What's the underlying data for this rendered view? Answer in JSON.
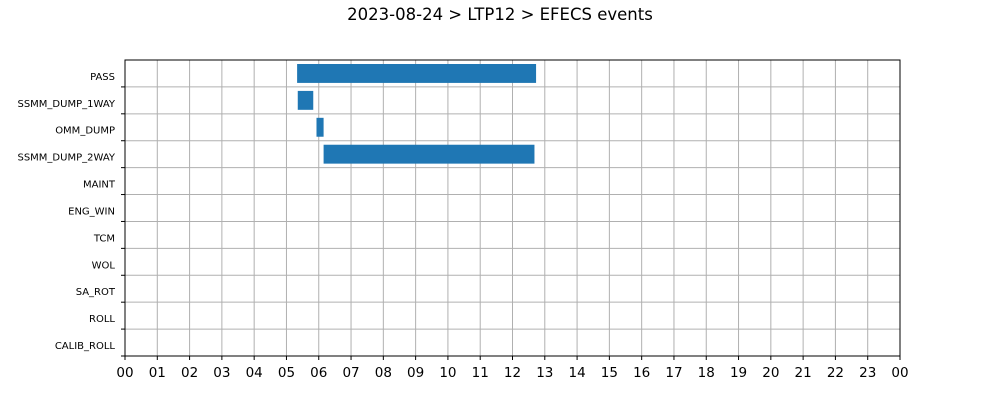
{
  "chart_data": {
    "type": "bar",
    "orientation": "horizontal",
    "title": "2023-08-24 > LTP12 > EFECS events",
    "xlabel": "",
    "ylabel": "",
    "categories": [
      "PASS",
      "SSMM_DUMP_1WAY",
      "OMM_DUMP",
      "SSMM_DUMP_2WAY",
      "MAINT",
      "ENG_WIN",
      "TCM",
      "WOL",
      "SA_ROT",
      "ROLL",
      "CALIB_ROLL"
    ],
    "x_tick_labels": [
      "00",
      "01",
      "02",
      "03",
      "04",
      "05",
      "06",
      "07",
      "08",
      "09",
      "10",
      "11",
      "12",
      "13",
      "14",
      "15",
      "16",
      "17",
      "18",
      "19",
      "20",
      "21",
      "22",
      "23",
      "00"
    ],
    "xlim": [
      0,
      24
    ],
    "x_unit": "hour of day",
    "grid": true,
    "bar_color": "#1f77b4",
    "events": [
      {
        "category": "PASS",
        "start": 5.33,
        "end": 12.73
      },
      {
        "category": "SSMM_DUMP_1WAY",
        "start": 5.35,
        "end": 5.83
      },
      {
        "category": "OMM_DUMP",
        "start": 5.93,
        "end": 6.15
      },
      {
        "category": "SSMM_DUMP_2WAY",
        "start": 6.15,
        "end": 12.68
      }
    ]
  }
}
